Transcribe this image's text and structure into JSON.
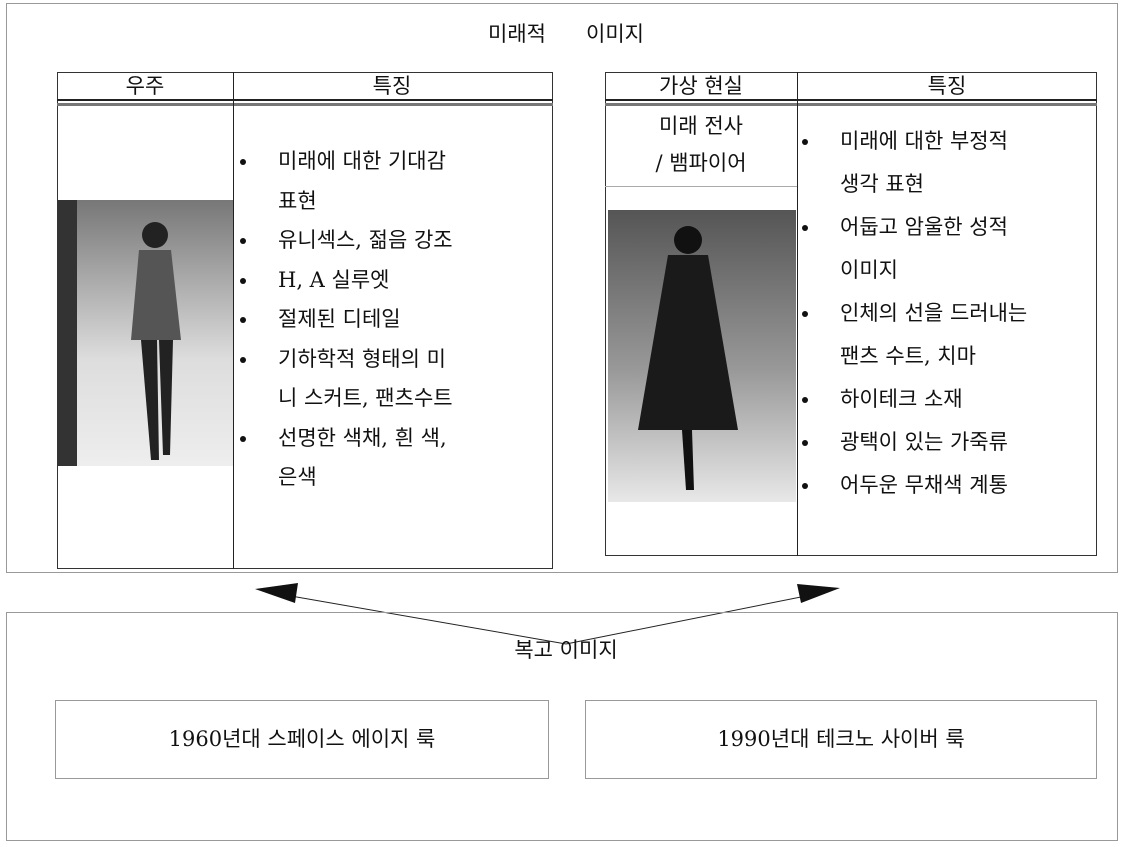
{
  "title": "미래적      이미지",
  "left": {
    "header": [
      "우주",
      "특징"
    ],
    "features": [
      [
        "미래에 대한 기대감",
        "표현"
      ],
      [
        "유니섹스, 젊음 강조"
      ],
      [
        "H, A 실루엣"
      ],
      [
        "절제된 디테일"
      ],
      [
        "기하학적 형태의 미",
        "니 스커트, 팬츠수트"
      ],
      [
        "선명한 색채, 흰 색,",
        "은색"
      ]
    ]
  },
  "right": {
    "header": [
      "가상 현실",
      "특징"
    ],
    "label": [
      "미래 전사",
      "/ 뱀파이어"
    ],
    "features": [
      [
        "미래에 대한 부정적",
        "생각 표현"
      ],
      [
        "어둡고 암울한 성적",
        "이미지"
      ],
      [
        "인체의 선을 드러내는",
        "팬츠 수트, 치마"
      ],
      [
        "하이테크 소재"
      ],
      [
        "광택이 있는 가죽류"
      ],
      [
        "어두운 무채색 계통"
      ]
    ]
  },
  "retro": {
    "title": "복고 이미지",
    "items": [
      "1960년대 스페이스 에이지 룩",
      "1990년대 테크노 사이버 룩"
    ]
  }
}
